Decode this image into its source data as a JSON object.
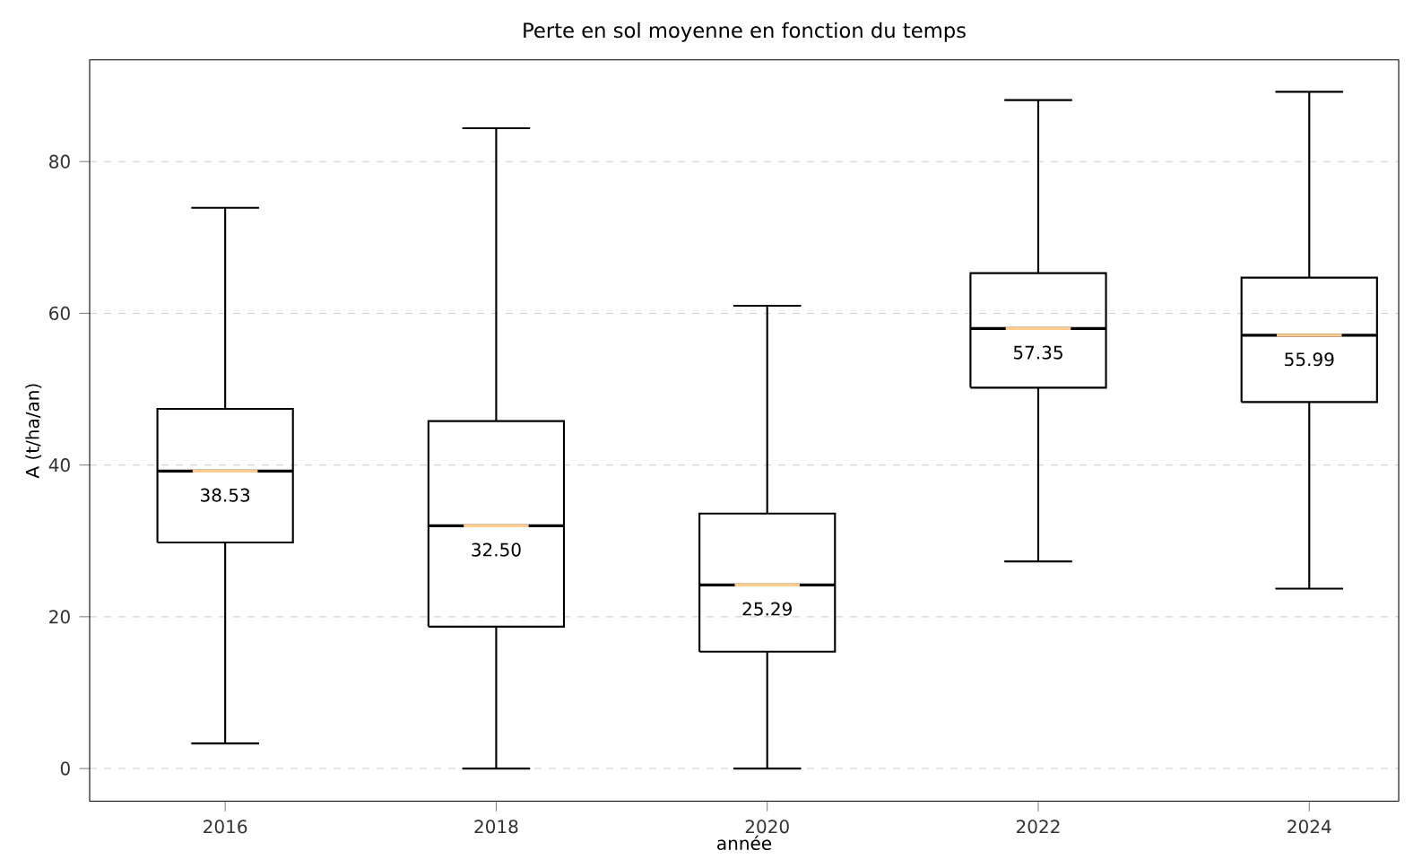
{
  "chart_data": {
    "type": "box",
    "title": "Perte en sol moyenne en fonction du temps",
    "xlabel": "année",
    "ylabel": "A (t/ha/an)",
    "categories": [
      "2016",
      "2018",
      "2020",
      "2022",
      "2024"
    ],
    "boxes": [
      {
        "low": 3.3,
        "q1": 29.8,
        "median": 39.2,
        "q3": 47.4,
        "high": 73.9
      },
      {
        "low": 0,
        "q1": 18.7,
        "median": 32.0,
        "q3": 45.8,
        "high": 84.4
      },
      {
        "low": 0,
        "q1": 15.4,
        "median": 24.2,
        "q3": 33.6,
        "high": 61.0
      },
      {
        "low": 27.3,
        "q1": 50.2,
        "median": 58.0,
        "q3": 65.3,
        "high": 88.1
      },
      {
        "low": 23.7,
        "q1": 48.3,
        "median": 57.1,
        "q3": 64.7,
        "high": 89.2
      }
    ],
    "value_labels": [
      "38.53",
      "32.50",
      "25.29",
      "57.35",
      "55.99"
    ],
    "ylim": [
      -4.3,
      93.4
    ],
    "yticks": [
      0,
      20,
      40,
      60,
      80
    ],
    "grid": "y"
  }
}
